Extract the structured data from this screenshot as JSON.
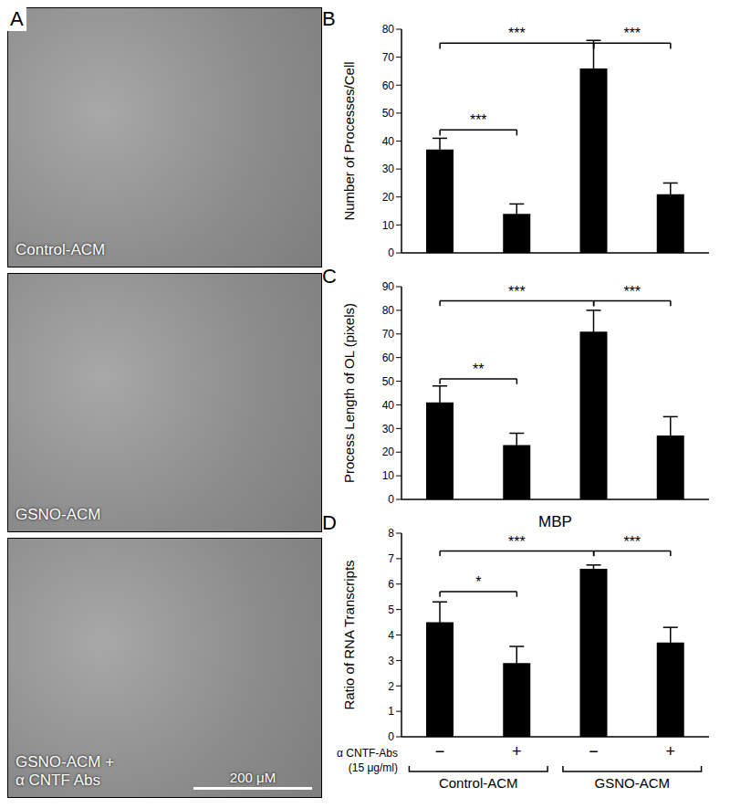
{
  "image_panel": {
    "panel": "A",
    "sections": [
      [
        "Control-ACM"
      ],
      [
        "GSNO-ACM"
      ],
      [
        "GSNO-ACM +",
        "α CNTF Abs"
      ]
    ],
    "scale_bar": "200 μM"
  },
  "chart_data": [
    {
      "panel": "B",
      "type": "bar",
      "y_label": "Number of Processes/Cell",
      "categories": [
        null,
        null,
        null,
        null
      ],
      "values": [
        37,
        14,
        66,
        21
      ],
      "errors": [
        4,
        3.5,
        10,
        4
      ],
      "color": "#000000",
      "ylim": [
        0,
        80
      ],
      "yticks": [
        0,
        10,
        20,
        30,
        40,
        50,
        60,
        70,
        80
      ],
      "grid": false,
      "tick_labels": "y",
      "annotations": [
        {
          "from": 0,
          "to": 2,
          "y": 75,
          "label": "***"
        },
        {
          "from": 2,
          "to": 3,
          "y": 75,
          "label": "***"
        },
        {
          "from": 0,
          "to": 1,
          "y": 44,
          "label": "***"
        }
      ]
    },
    {
      "panel": "C",
      "type": "bar",
      "y_label": "Process Length of OL (pixels)",
      "categories": [
        null,
        null,
        null,
        null
      ],
      "values": [
        41,
        23,
        71,
        27
      ],
      "errors": [
        7,
        5,
        9,
        8
      ],
      "color": "#000000",
      "ylim": [
        0,
        90
      ],
      "yticks": [
        0,
        10,
        20,
        30,
        40,
        50,
        60,
        70,
        80,
        90
      ],
      "grid": false,
      "tick_labels": "y",
      "annotations": [
        {
          "from": 0,
          "to": 2,
          "y": 84,
          "label": "***"
        },
        {
          "from": 2,
          "to": 3,
          "y": 84,
          "label": "***"
        },
        {
          "from": 0,
          "to": 1,
          "y": 51,
          "label": "**"
        }
      ]
    },
    {
      "panel": "D",
      "type": "bar",
      "title": "MBP",
      "y_label": "Ratio of RNA Transcripts",
      "x_label": [
        "α CNTF-Abs",
        "(15 μg/ml)"
      ],
      "categories": [
        "−",
        "+",
        "−",
        "+"
      ],
      "groups": [
        {
          "label": "Control-ACM",
          "from": 0,
          "to": 1
        },
        {
          "label": "GSNO-ACM",
          "from": 2,
          "to": 3
        }
      ],
      "values": [
        4.5,
        2.9,
        6.6,
        3.7
      ],
      "errors": [
        0.8,
        0.65,
        0.15,
        0.6
      ],
      "color": "#000000",
      "ylim": [
        0,
        8
      ],
      "yticks": [
        0,
        1,
        2,
        3,
        4,
        5,
        6,
        7,
        8
      ],
      "grid": false,
      "tick_labels": true,
      "annotations": [
        {
          "from": 0,
          "to": 2,
          "y": 7.3,
          "label": "***"
        },
        {
          "from": 2,
          "to": 3,
          "y": 7.3,
          "label": "***"
        },
        {
          "from": 0,
          "to": 1,
          "y": 5.7,
          "label": "*"
        }
      ]
    }
  ]
}
